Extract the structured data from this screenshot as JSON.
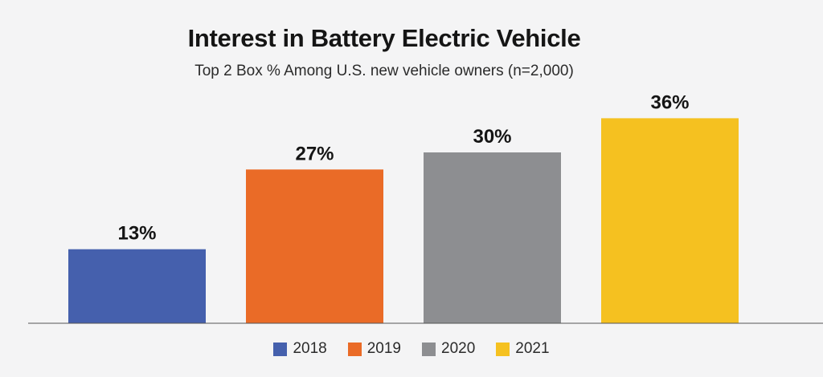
{
  "chart_data": {
    "type": "bar",
    "title": "Interest in Battery Electric Vehicle",
    "subtitle": "Top 2 Box % Among U.S. new vehicle owners (n=2,000)",
    "categories": [
      "2018",
      "2019",
      "2020",
      "2021"
    ],
    "values": [
      13,
      27,
      30,
      36
    ],
    "value_labels": [
      "13%",
      "27%",
      "30%",
      "36%"
    ],
    "colors": [
      "#4560ad",
      "#ea6b27",
      "#8d8e91",
      "#f5c120"
    ],
    "xlabel": "",
    "ylabel": "",
    "ylim": [
      0,
      40
    ],
    "grid": false,
    "legend_position": "bottom",
    "legend": [
      {
        "label": "2018",
        "color": "#4560ad"
      },
      {
        "label": "2019",
        "color": "#ea6b27"
      },
      {
        "label": "2020",
        "color": "#8d8e91"
      },
      {
        "label": "2021",
        "color": "#f5c120"
      }
    ]
  }
}
